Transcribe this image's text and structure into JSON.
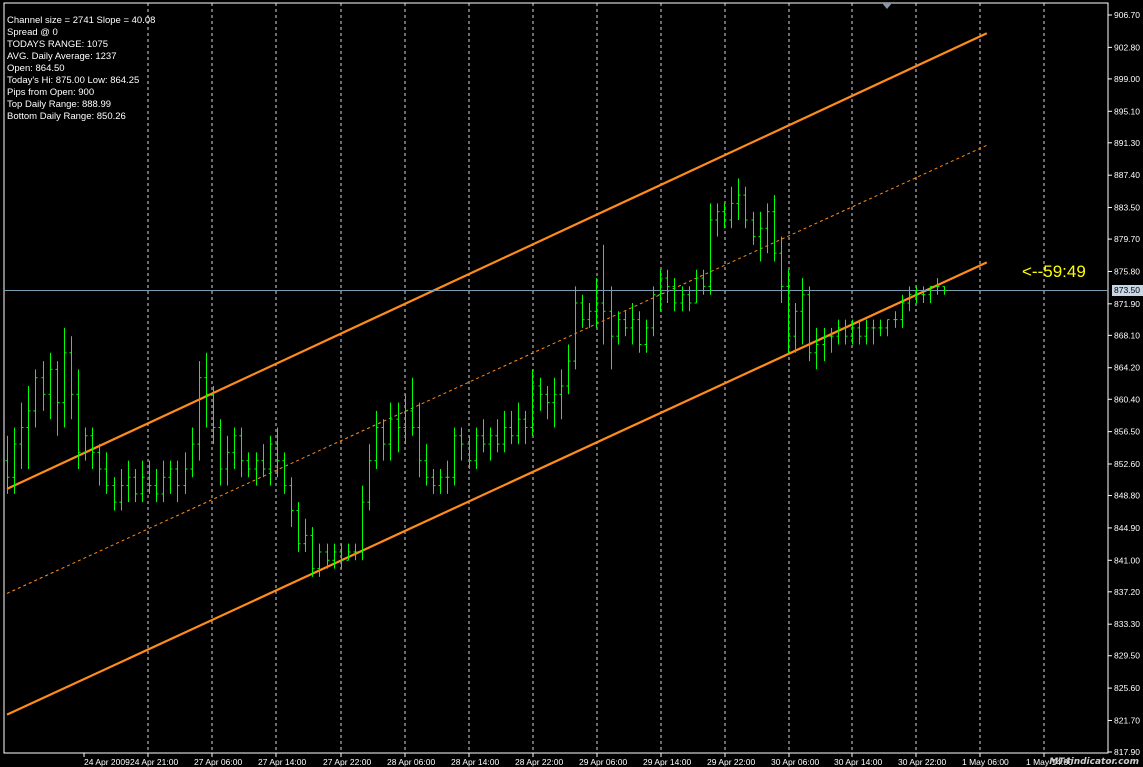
{
  "info": {
    "lines": [
      "Channel size = 2741 Slope = 40.08",
      "Spread @ 0",
      "TODAYS RANGE: 1075",
      "AVG. Daily Average: 1237",
      "Open: 864.50",
      "Today's Hi: 875.00  Low: 864.25",
      "Pips from Open: 900",
      "Top Daily Range: 888.99",
      "Bottom Daily Range: 850.26"
    ]
  },
  "timer": "<--59:49",
  "watermark": "MT4indicator.com",
  "price_axis": {
    "labels": [
      "906.70",
      "902.80",
      "899.00",
      "895.10",
      "891.30",
      "887.40",
      "883.50",
      "879.70",
      "875.80",
      "871.90",
      "868.10",
      "864.20",
      "860.40",
      "856.50",
      "852.60",
      "848.80",
      "844.90",
      "841.00",
      "837.20",
      "833.30",
      "829.50",
      "825.60",
      "821.70",
      "817.90"
    ],
    "current_price": "873.50"
  },
  "time_axis": {
    "labels": [
      "24 Apr 2009",
      "24 Apr 21:00",
      "27 Apr 06:00",
      "27 Apr 14:00",
      "27 Apr 22:00",
      "28 Apr 06:00",
      "28 Apr 14:00",
      "28 Apr 22:00",
      "29 Apr 06:00",
      "29 Apr 14:00",
      "29 Apr 22:00",
      "30 Apr 06:00",
      "30 Apr 14:00",
      "30 Apr 22:00",
      "1 May 06:00",
      "1 May 14:00"
    ]
  },
  "colors": {
    "background": "#000000",
    "bar": "#00ff00",
    "channel": "#ff8c1a",
    "grid": "#ffffff",
    "axis_text": "#ffffff",
    "price_line": "#7a9cb0",
    "timer": "#ffff00"
  },
  "chart_data": {
    "type": "ohlc",
    "bars": [
      {
        "o": 853,
        "h": 856,
        "l": 849,
        "c": 851
      },
      {
        "o": 851,
        "h": 857,
        "l": 849,
        "c": 855
      },
      {
        "o": 855,
        "h": 860,
        "l": 852,
        "c": 857
      },
      {
        "o": 857,
        "h": 862,
        "l": 852,
        "c": 859
      },
      {
        "o": 859,
        "h": 864,
        "l": 857,
        "c": 863
      },
      {
        "o": 863,
        "h": 865,
        "l": 859,
        "c": 861
      },
      {
        "o": 861,
        "h": 866,
        "l": 858,
        "c": 864
      },
      {
        "o": 864,
        "h": 865,
        "l": 856,
        "c": 860
      },
      {
        "o": 860,
        "h": 869,
        "l": 857,
        "c": 866
      },
      {
        "o": 866,
        "h": 868,
        "l": 858,
        "c": 861
      },
      {
        "o": 861,
        "h": 864,
        "l": 852,
        "c": 854
      },
      {
        "o": 854,
        "h": 857,
        "l": 853,
        "c": 856
      },
      {
        "o": 856,
        "h": 857,
        "l": 852,
        "c": 854
      },
      {
        "o": 854,
        "h": 855,
        "l": 850,
        "c": 852
      },
      {
        "o": 852,
        "h": 854,
        "l": 849,
        "c": 850
      },
      {
        "o": 850,
        "h": 851,
        "l": 847,
        "c": 848
      },
      {
        "o": 848,
        "h": 852,
        "l": 847,
        "c": 850
      },
      {
        "o": 850,
        "h": 853,
        "l": 848,
        "c": 851
      },
      {
        "o": 851,
        "h": 852,
        "l": 848,
        "c": 849
      },
      {
        "o": 849,
        "h": 853,
        "l": 848,
        "c": 851
      },
      {
        "o": 851,
        "h": 853,
        "l": 849,
        "c": 850
      },
      {
        "o": 850,
        "h": 852,
        "l": 848,
        "c": 849
      },
      {
        "o": 849,
        "h": 853,
        "l": 848,
        "c": 851
      },
      {
        "o": 851,
        "h": 853,
        "l": 849,
        "c": 852
      },
      {
        "o": 852,
        "h": 853,
        "l": 848,
        "c": 850
      },
      {
        "o": 850,
        "h": 854,
        "l": 849,
        "c": 852
      },
      {
        "o": 852,
        "h": 857,
        "l": 851,
        "c": 855
      },
      {
        "o": 855,
        "h": 865,
        "l": 853,
        "c": 863
      },
      {
        "o": 863,
        "h": 866,
        "l": 857,
        "c": 861
      },
      {
        "o": 861,
        "h": 862,
        "l": 855,
        "c": 857
      },
      {
        "o": 857,
        "h": 858,
        "l": 850,
        "c": 852
      },
      {
        "o": 852,
        "h": 856,
        "l": 850,
        "c": 854
      },
      {
        "o": 854,
        "h": 857,
        "l": 852,
        "c": 856
      },
      {
        "o": 856,
        "h": 857,
        "l": 851,
        "c": 853
      },
      {
        "o": 853,
        "h": 854,
        "l": 851,
        "c": 852
      },
      {
        "o": 852,
        "h": 854,
        "l": 850,
        "c": 853
      },
      {
        "o": 853,
        "h": 855,
        "l": 851,
        "c": 852
      },
      {
        "o": 852,
        "h": 856,
        "l": 850,
        "c": 855
      },
      {
        "o": 855,
        "h": 857,
        "l": 851,
        "c": 853
      },
      {
        "o": 853,
        "h": 854,
        "l": 849,
        "c": 850
      },
      {
        "o": 850,
        "h": 851,
        "l": 845,
        "c": 847
      },
      {
        "o": 847,
        "h": 848,
        "l": 842,
        "c": 843
      },
      {
        "o": 843,
        "h": 846,
        "l": 842,
        "c": 844
      },
      {
        "o": 844,
        "h": 845,
        "l": 839,
        "c": 840
      },
      {
        "o": 840,
        "h": 843,
        "l": 839,
        "c": 842
      },
      {
        "o": 842,
        "h": 843,
        "l": 840,
        "c": 841
      },
      {
        "o": 841,
        "h": 843,
        "l": 840,
        "c": 842
      },
      {
        "o": 842,
        "h": 843,
        "l": 840,
        "c": 841
      },
      {
        "o": 841,
        "h": 843,
        "l": 841,
        "c": 842
      },
      {
        "o": 842,
        "h": 843,
        "l": 841,
        "c": 842
      },
      {
        "o": 842,
        "h": 850,
        "l": 841,
        "c": 848
      },
      {
        "o": 848,
        "h": 855,
        "l": 847,
        "c": 853
      },
      {
        "o": 853,
        "h": 859,
        "l": 852,
        "c": 857
      },
      {
        "o": 857,
        "h": 858,
        "l": 853,
        "c": 855
      },
      {
        "o": 855,
        "h": 860,
        "l": 853,
        "c": 858
      },
      {
        "o": 858,
        "h": 860,
        "l": 854,
        "c": 857
      },
      {
        "o": 857,
        "h": 861,
        "l": 855,
        "c": 859
      },
      {
        "o": 859,
        "h": 863,
        "l": 856,
        "c": 857
      },
      {
        "o": 857,
        "h": 860,
        "l": 851,
        "c": 853
      },
      {
        "o": 853,
        "h": 855,
        "l": 850,
        "c": 851
      },
      {
        "o": 851,
        "h": 852,
        "l": 849,
        "c": 850
      },
      {
        "o": 850,
        "h": 852,
        "l": 849,
        "c": 851
      },
      {
        "o": 851,
        "h": 853,
        "l": 849,
        "c": 851
      },
      {
        "o": 851,
        "h": 857,
        "l": 850,
        "c": 856
      },
      {
        "o": 856,
        "h": 857,
        "l": 853,
        "c": 855
      },
      {
        "o": 855,
        "h": 856,
        "l": 852,
        "c": 853
      },
      {
        "o": 853,
        "h": 857,
        "l": 852,
        "c": 856
      },
      {
        "o": 856,
        "h": 858,
        "l": 854,
        "c": 855
      },
      {
        "o": 855,
        "h": 857,
        "l": 853,
        "c": 856
      },
      {
        "o": 856,
        "h": 858,
        "l": 854,
        "c": 855
      },
      {
        "o": 855,
        "h": 859,
        "l": 854,
        "c": 857
      },
      {
        "o": 857,
        "h": 859,
        "l": 855,
        "c": 856
      },
      {
        "o": 856,
        "h": 860,
        "l": 855,
        "c": 858
      },
      {
        "o": 858,
        "h": 859,
        "l": 855,
        "c": 857
      },
      {
        "o": 857,
        "h": 864,
        "l": 856,
        "c": 862
      },
      {
        "o": 862,
        "h": 863,
        "l": 859,
        "c": 861
      },
      {
        "o": 861,
        "h": 862,
        "l": 858,
        "c": 860
      },
      {
        "o": 860,
        "h": 863,
        "l": 857,
        "c": 861
      },
      {
        "o": 861,
        "h": 864,
        "l": 858,
        "c": 862
      },
      {
        "o": 862,
        "h": 867,
        "l": 861,
        "c": 865
      },
      {
        "o": 865,
        "h": 874,
        "l": 864,
        "c": 872
      },
      {
        "o": 872,
        "h": 873,
        "l": 869,
        "c": 870
      },
      {
        "o": 870,
        "h": 872,
        "l": 869,
        "c": 871
      },
      {
        "o": 871,
        "h": 875,
        "l": 869,
        "c": 872
      },
      {
        "o": 872,
        "h": 879,
        "l": 867,
        "c": 871
      },
      {
        "o": 871,
        "h": 874,
        "l": 864,
        "c": 868
      },
      {
        "o": 868,
        "h": 871,
        "l": 867,
        "c": 870
      },
      {
        "o": 870,
        "h": 871,
        "l": 868,
        "c": 869
      },
      {
        "o": 869,
        "h": 872,
        "l": 867,
        "c": 870
      },
      {
        "o": 870,
        "h": 871,
        "l": 866,
        "c": 867
      },
      {
        "o": 867,
        "h": 870,
        "l": 866,
        "c": 869
      },
      {
        "o": 869,
        "h": 874,
        "l": 868,
        "c": 873
      },
      {
        "o": 873,
        "h": 876,
        "l": 871,
        "c": 875
      },
      {
        "o": 875,
        "h": 876,
        "l": 872,
        "c": 874
      },
      {
        "o": 874,
        "h": 875,
        "l": 871,
        "c": 872
      },
      {
        "o": 872,
        "h": 874,
        "l": 871,
        "c": 873
      },
      {
        "o": 873,
        "h": 874,
        "l": 871,
        "c": 872
      },
      {
        "o": 872,
        "h": 876,
        "l": 872,
        "c": 875
      },
      {
        "o": 875,
        "h": 876,
        "l": 873,
        "c": 874
      },
      {
        "o": 874,
        "h": 884,
        "l": 873,
        "c": 882
      },
      {
        "o": 882,
        "h": 884,
        "l": 880,
        "c": 883
      },
      {
        "o": 883,
        "h": 884,
        "l": 881,
        "c": 882
      },
      {
        "o": 882,
        "h": 886,
        "l": 881,
        "c": 884
      },
      {
        "o": 884,
        "h": 887,
        "l": 882,
        "c": 885
      },
      {
        "o": 885,
        "h": 886,
        "l": 881,
        "c": 882
      },
      {
        "o": 882,
        "h": 883,
        "l": 879,
        "c": 880
      },
      {
        "o": 880,
        "h": 883,
        "l": 877,
        "c": 881
      },
      {
        "o": 881,
        "h": 884,
        "l": 878,
        "c": 883
      },
      {
        "o": 883,
        "h": 885,
        "l": 877,
        "c": 878
      },
      {
        "o": 878,
        "h": 880,
        "l": 872,
        "c": 874
      },
      {
        "o": 874,
        "h": 876,
        "l": 866,
        "c": 868
      },
      {
        "o": 868,
        "h": 872,
        "l": 866,
        "c": 871
      },
      {
        "o": 871,
        "h": 875,
        "l": 867,
        "c": 873
      },
      {
        "o": 873,
        "h": 874,
        "l": 865,
        "c": 866
      },
      {
        "o": 866,
        "h": 869,
        "l": 864,
        "c": 867
      },
      {
        "o": 867,
        "h": 869,
        "l": 865,
        "c": 868
      },
      {
        "o": 868,
        "h": 869,
        "l": 866,
        "c": 868
      },
      {
        "o": 868,
        "h": 870,
        "l": 867,
        "c": 869
      },
      {
        "o": 869,
        "h": 870,
        "l": 867,
        "c": 868
      },
      {
        "o": 868,
        "h": 870,
        "l": 867,
        "c": 869
      },
      {
        "o": 869,
        "h": 870,
        "l": 867,
        "c": 868
      },
      {
        "o": 868,
        "h": 870,
        "l": 867,
        "c": 869
      },
      {
        "o": 869,
        "h": 870,
        "l": 867,
        "c": 869
      },
      {
        "o": 869,
        "h": 870,
        "l": 868,
        "c": 869
      },
      {
        "o": 869,
        "h": 870,
        "l": 868,
        "c": 870
      },
      {
        "o": 870,
        "h": 871,
        "l": 869,
        "c": 870
      },
      {
        "o": 870,
        "h": 873,
        "l": 869,
        "c": 872
      },
      {
        "o": 872,
        "h": 874,
        "l": 871,
        "c": 873
      },
      {
        "o": 873,
        "h": 874,
        "l": 872,
        "c": 873
      },
      {
        "o": 873,
        "h": 874,
        "l": 872,
        "c": 873
      },
      {
        "o": 873,
        "h": 874,
        "l": 872,
        "c": 874
      },
      {
        "o": 874,
        "h": 875,
        "l": 873,
        "c": 874
      },
      {
        "o": 874,
        "h": 874,
        "l": 873,
        "c": 873.5
      }
    ],
    "channel": {
      "upper": [
        [
          0,
          849.6
        ],
        [
          138,
          904.5
        ]
      ],
      "middle": [
        [
          0,
          837.0
        ],
        [
          138,
          891.0
        ]
      ],
      "lower": [
        [
          0,
          822.4
        ],
        [
          138,
          876.9
        ]
      ]
    },
    "current_price": 873.5,
    "ylim": [
      817.9,
      906.7
    ],
    "grid": true,
    "legend": "none"
  }
}
